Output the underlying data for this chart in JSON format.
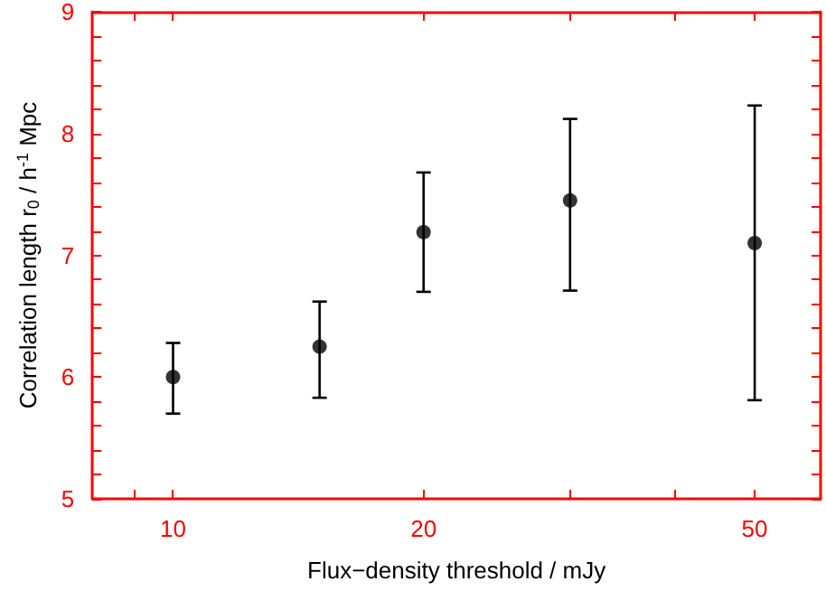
{
  "chart_data": {
    "type": "scatter",
    "xlabel": "Flux−density threshold / mJy",
    "ylabel": "Correlation length r$_{0}$ / h$^{-1}$ Mpc",
    "x": [
      10,
      15,
      20,
      30,
      50
    ],
    "series": [
      {
        "color": "#000000",
        "values": [
          6.0,
          6.25,
          7.19,
          7.45,
          7.1
        ],
        "errors": [
          [
            5.7,
            6.28
          ],
          [
            5.83,
            6.62
          ],
          [
            6.7,
            7.68
          ],
          [
            6.71,
            8.12
          ],
          [
            5.81,
            8.23
          ]
        ]
      }
    ],
    "marker": "circle",
    "log": "x",
    "xlim": [
      8,
      60
    ],
    "xticks": [
      {
        "value": 9,
        "label": null
      },
      10,
      20,
      {
        "value": 30,
        "label": null
      },
      {
        "value": 40,
        "label": null
      },
      50
    ],
    "ylim": [
      5,
      9
    ],
    "yticks": [
      5,
      {
        "value": 5.2,
        "label": null
      },
      {
        "value": 5.4,
        "label": null
      },
      {
        "value": 5.6,
        "label": null
      },
      {
        "value": 5.8,
        "label": null
      },
      6,
      {
        "value": 6.2,
        "label": null
      },
      {
        "value": 6.4,
        "label": null
      },
      {
        "value": 6.6,
        "label": null
      },
      {
        "value": 6.8,
        "label": null
      },
      7,
      {
        "value": 7.2,
        "label": null
      },
      {
        "value": 7.4,
        "label": null
      },
      {
        "value": 7.6,
        "label": null
      },
      {
        "value": 7.8,
        "label": null
      },
      8,
      {
        "value": 8.2,
        "label": null
      },
      {
        "value": 8.4,
        "label": null
      },
      {
        "value": 8.6,
        "label": null
      },
      {
        "value": 8.8,
        "label": null
      },
      9
    ]
  }
}
